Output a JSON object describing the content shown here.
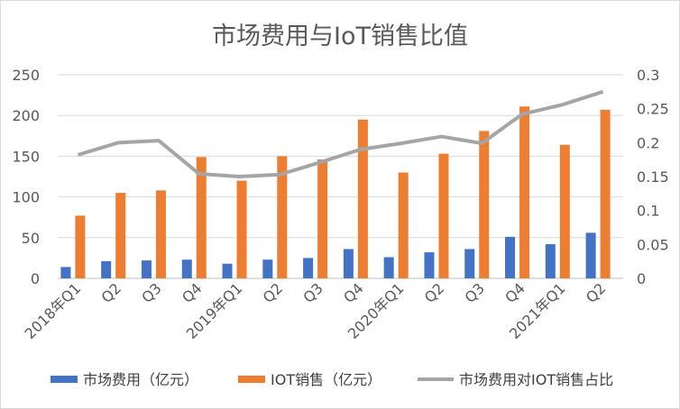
{
  "chart_data": {
    "type": "bar",
    "title": "市场费用与IoT销售比值",
    "categories": [
      "2018年Q1",
      "Q2",
      "Q3",
      "Q4",
      "2019年Q1",
      "Q2",
      "Q3",
      "Q4",
      "2020年Q1",
      "Q2",
      "Q3",
      "Q4",
      "2021年Q1",
      "Q2"
    ],
    "series": [
      {
        "name": "市场费用（亿元）",
        "kind": "bar",
        "axis": "left",
        "color": "#4472c4",
        "values": [
          14,
          21,
          22,
          23,
          18,
          23,
          25,
          36,
          26,
          32,
          36,
          51,
          42,
          56
        ]
      },
      {
        "name": "IOT销售（亿元）",
        "kind": "bar",
        "axis": "left",
        "color": "#ed7d31",
        "values": [
          77,
          105,
          108,
          149,
          120,
          150,
          146,
          195,
          130,
          153,
          181,
          211,
          164,
          207
        ]
      },
      {
        "name": "市场费用对IOT销售占比",
        "kind": "line",
        "axis": "right",
        "color": "#a5a5a5",
        "values": [
          0.182,
          0.2,
          0.203,
          0.154,
          0.15,
          0.153,
          0.171,
          0.19,
          0.199,
          0.209,
          0.199,
          0.242,
          0.256,
          0.275
        ]
      }
    ],
    "y_left": {
      "min": 0,
      "max": 250,
      "step": 50,
      "ticks": [
        "0",
        "50",
        "100",
        "150",
        "200",
        "250"
      ]
    },
    "y_right": {
      "min": 0,
      "max": 0.3,
      "step": 0.05,
      "ticks": [
        "0",
        "0.05",
        "0.1",
        "0.15",
        "0.2",
        "0.25",
        "0.3"
      ]
    },
    "grid": true,
    "legend": "bottom"
  }
}
